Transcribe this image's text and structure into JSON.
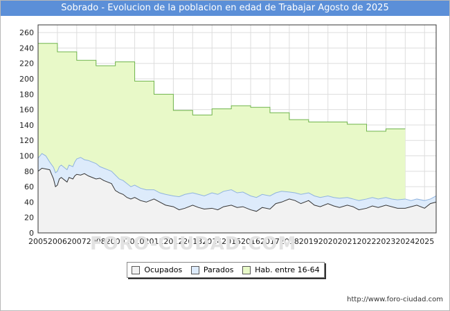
{
  "chart_data": {
    "type": "area",
    "title": "Sobrado - Evolucion de la poblacion en edad de Trabajar Agosto de 2025",
    "xlabel": "",
    "ylabel": "",
    "ylim": [
      0,
      270
    ],
    "xlim": [
      2005,
      2025.6
    ],
    "y_ticks": [
      0,
      20,
      40,
      60,
      80,
      100,
      120,
      140,
      160,
      180,
      200,
      220,
      240,
      260
    ],
    "x_ticks": [
      2005,
      2006,
      2007,
      2008,
      2009,
      2010,
      2011,
      2012,
      2013,
      2014,
      2015,
      2016,
      2017,
      2018,
      2019,
      2020,
      2021,
      2022,
      2023,
      2024,
      2025
    ],
    "grid": true,
    "legend_position": "bottom",
    "series": [
      {
        "name": "Ocupados",
        "color": "#f2f2f2",
        "line_color": "#333333",
        "x": [
          2005,
          2005.1,
          2005.2,
          2005.4,
          2005.6,
          2005.8,
          2005.9,
          2006.0,
          2006.1,
          2006.2,
          2006.4,
          2006.5,
          2006.6,
          2006.8,
          2006.9,
          2007.0,
          2007.2,
          2007.4,
          2007.6,
          2007.8,
          2008.0,
          2008.2,
          2008.4,
          2008.6,
          2008.8,
          2009.0,
          2009.2,
          2009.4,
          2009.6,
          2009.8,
          2010.0,
          2010.3,
          2010.6,
          2011.0,
          2011.3,
          2011.6,
          2012.0,
          2012.3,
          2012.6,
          2013.0,
          2013.3,
          2013.6,
          2014.0,
          2014.3,
          2014.6,
          2015.0,
          2015.3,
          2015.6,
          2016.0,
          2016.3,
          2016.6,
          2017.0,
          2017.3,
          2017.6,
          2018.0,
          2018.3,
          2018.6,
          2019.0,
          2019.3,
          2019.6,
          2020.0,
          2020.3,
          2020.6,
          2021.0,
          2021.3,
          2021.6,
          2022.0,
          2022.3,
          2022.6,
          2023.0,
          2023.3,
          2023.6,
          2024.0,
          2024.3,
          2024.6,
          2025.0,
          2025.3,
          2025.6
        ],
        "values": [
          80,
          82,
          84,
          83,
          82,
          70,
          60,
          62,
          70,
          72,
          68,
          66,
          72,
          70,
          74,
          76,
          75,
          77,
          74,
          72,
          70,
          71,
          68,
          66,
          64,
          55,
          52,
          50,
          46,
          44,
          46,
          42,
          40,
          44,
          40,
          36,
          34,
          30,
          32,
          36,
          33,
          31,
          32,
          30,
          34,
          36,
          33,
          34,
          30,
          28,
          33,
          31,
          38,
          40,
          44,
          42,
          38,
          42,
          36,
          34,
          38,
          35,
          33,
          36,
          34,
          30,
          32,
          35,
          33,
          36,
          34,
          32,
          32,
          34,
          36,
          32,
          38,
          40
        ]
      },
      {
        "name": "Parados",
        "color": "#ddebfb",
        "line_color": "#8fb3df",
        "x": [
          2005,
          2005.1,
          2005.2,
          2005.4,
          2005.6,
          2005.8,
          2005.9,
          2006.0,
          2006.1,
          2006.2,
          2006.4,
          2006.5,
          2006.6,
          2006.8,
          2006.9,
          2007.0,
          2007.2,
          2007.4,
          2007.6,
          2007.8,
          2008.0,
          2008.2,
          2008.4,
          2008.6,
          2008.8,
          2009.0,
          2009.2,
          2009.4,
          2009.6,
          2009.8,
          2010.0,
          2010.3,
          2010.6,
          2011.0,
          2011.3,
          2011.6,
          2012.0,
          2012.3,
          2012.6,
          2013.0,
          2013.3,
          2013.6,
          2014.0,
          2014.3,
          2014.6,
          2015.0,
          2015.3,
          2015.6,
          2016.0,
          2016.3,
          2016.6,
          2017.0,
          2017.3,
          2017.6,
          2018.0,
          2018.3,
          2018.6,
          2019.0,
          2019.3,
          2019.6,
          2020.0,
          2020.3,
          2020.6,
          2021.0,
          2021.3,
          2021.6,
          2022.0,
          2022.3,
          2022.6,
          2023.0,
          2023.3,
          2023.6,
          2024.0,
          2024.3,
          2024.6,
          2025.0,
          2025.3,
          2025.6
        ],
        "values": [
          97,
          100,
          103,
          100,
          92,
          85,
          78,
          80,
          86,
          88,
          84,
          82,
          88,
          86,
          92,
          96,
          98,
          95,
          94,
          92,
          90,
          86,
          84,
          82,
          80,
          75,
          70,
          68,
          64,
          60,
          62,
          58,
          56,
          56,
          52,
          50,
          48,
          47,
          50,
          52,
          50,
          48,
          52,
          50,
          54,
          56,
          52,
          53,
          48,
          46,
          50,
          48,
          52,
          54,
          53,
          52,
          50,
          52,
          48,
          46,
          48,
          46,
          45,
          46,
          44,
          42,
          44,
          46,
          44,
          46,
          44,
          43,
          44,
          42,
          44,
          42,
          44,
          48
        ]
      },
      {
        "name": "Hab. entre 16-64",
        "color": "#e8f9c8",
        "line_color": "#6fb44b",
        "x": [
          2005,
          2006,
          2006,
          2007,
          2007,
          2008,
          2008,
          2009,
          2009,
          2010,
          2010,
          2011,
          2011,
          2012,
          2012,
          2013,
          2013,
          2014,
          2014,
          2015,
          2015,
          2016,
          2016,
          2017,
          2017,
          2018,
          2018,
          2019,
          2019,
          2020,
          2020,
          2021,
          2021,
          2022,
          2022,
          2023,
          2023,
          2024
        ],
        "values": [
          246,
          246,
          235,
          235,
          224,
          224,
          217,
          217,
          222,
          222,
          197,
          197,
          180,
          180,
          159,
          159,
          153,
          153,
          161,
          161,
          165,
          165,
          163,
          163,
          156,
          156,
          147,
          147,
          144,
          144,
          144,
          144,
          141,
          141,
          132,
          132,
          135,
          135
        ]
      }
    ]
  },
  "legend": {
    "items": [
      {
        "label": "Ocupados",
        "color": "#f2f2f2"
      },
      {
        "label": "Parados",
        "color": "#ddebfb"
      },
      {
        "label": "Hab. entre 16-64",
        "color": "#e8f9c8"
      }
    ]
  },
  "watermark": "FORO-CIUDAD.COM",
  "source": "http://www.foro-ciudad.com"
}
